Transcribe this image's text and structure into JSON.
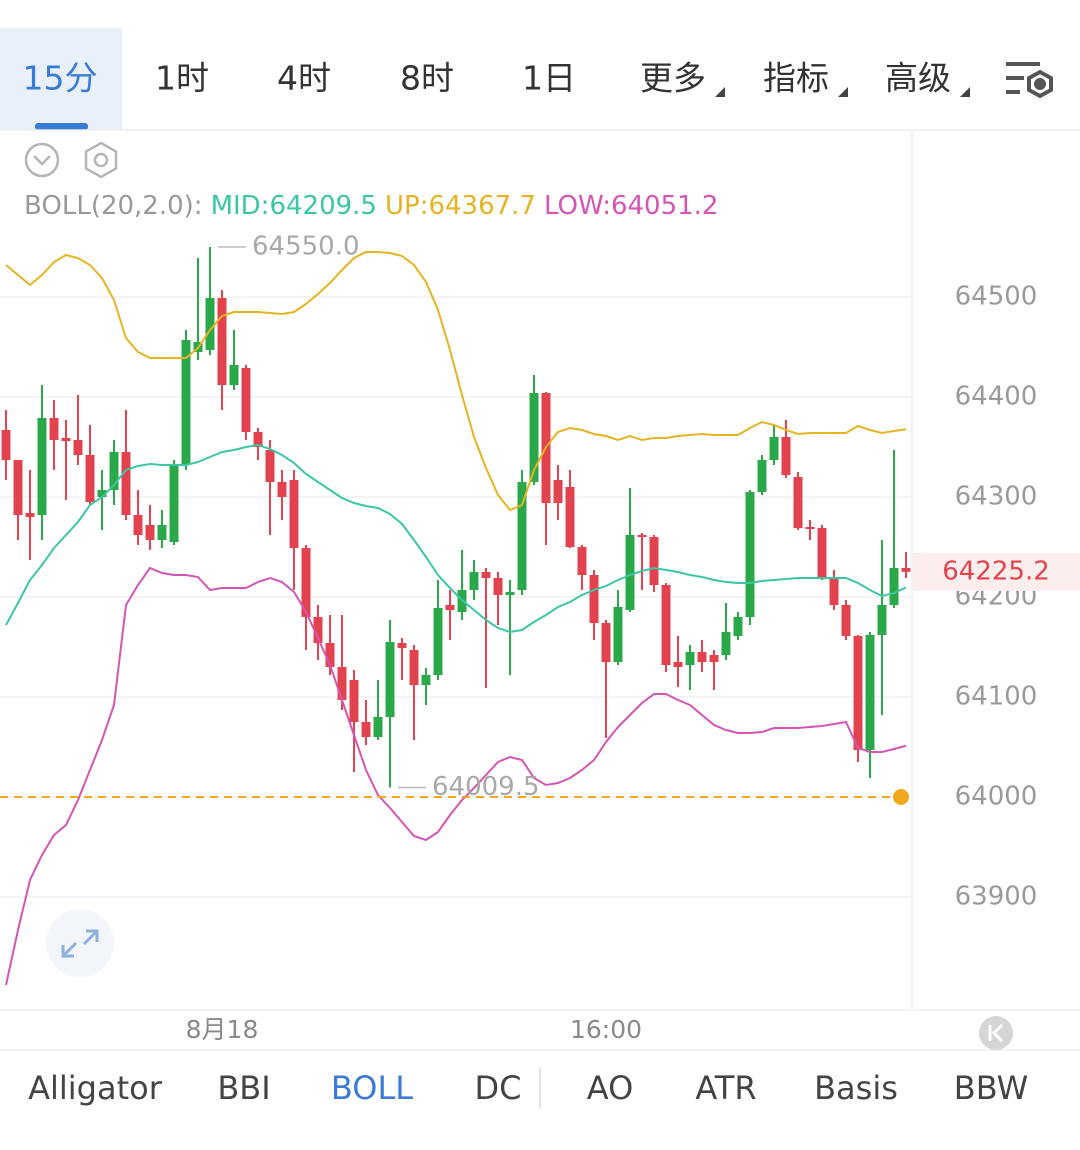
{
  "timeframe_tabs": {
    "items": [
      "15分",
      "1时",
      "4时",
      "8时",
      "1日",
      "更多",
      "指标",
      "高级"
    ],
    "active": 0
  },
  "indicator_tabs": {
    "items": [
      "Alligator",
      "BBI",
      "BOLL",
      "DC",
      "AO",
      "ATR",
      "Basis",
      "BBW"
    ],
    "active": 2
  },
  "chart_data": {
    "type": "candlestick",
    "indicator": "BOLL(20,2.0):",
    "categories": [
      null,
      null,
      null,
      null,
      null,
      null,
      null,
      null,
      null,
      null,
      null,
      null,
      null,
      null,
      null,
      null,
      null,
      null,
      "8月18",
      null,
      null,
      null,
      null,
      null,
      null,
      null,
      null,
      null,
      null,
      null,
      null,
      null,
      null,
      null,
      null,
      null,
      null,
      null,
      null,
      null,
      null,
      null,
      null,
      null,
      null,
      null,
      null,
      null,
      null,
      null,
      "16:00",
      null,
      null,
      null,
      null,
      null,
      null,
      null,
      null,
      null,
      null,
      null,
      null,
      null,
      null,
      null,
      null,
      null,
      null,
      null,
      null,
      null,
      null,
      null,
      null,
      null
    ],
    "open": [
      64367,
      64337,
      64284,
      64282,
      64379,
      64359,
      64357,
      64342,
      64300,
      64307,
      64345,
      64282,
      64272,
      64257,
      64255,
      64332,
      64445,
      64447,
      64499,
      64412,
      64429,
      64365,
      64347,
      64315,
      64317,
      64249,
      64180,
      64154,
      64130,
      64117,
      64075,
      64060,
      64080,
      64154,
      64147,
      64112,
      64122,
      64192,
      64185,
      64207,
      64225,
      64219,
      64202,
      64207,
      64315,
      64404,
      64317,
      64310,
      64250,
      64222,
      64174,
      64135,
      64187,
      64262,
      64260,
      64212,
      64135,
      64132,
      64145,
      64142,
      64142,
      64161,
      64180,
      64305,
      64337,
      64360,
      64320,
      64270,
      64269,
      64219,
      64192,
      64161,
      64047,
      64162,
      64192,
      64229
    ],
    "high": [
      64387,
      64337,
      64327,
      64412,
      64397,
      64377,
      64402,
      64372,
      64327,
      64357,
      64387,
      64307,
      64292,
      64287,
      64337,
      64467,
      64539,
      64550,
      64507,
      64467,
      64432,
      64369,
      64357,
      64327,
      64327,
      64252,
      64192,
      64182,
      64182,
      64127,
      64097,
      64117,
      64177,
      64159,
      64152,
      64129,
      64217,
      64207,
      64247,
      64237,
      64229,
      64225,
      64217,
      64327,
      64422,
      64405,
      64332,
      64327,
      64252,
      64227,
      64177,
      64207,
      64309,
      64264,
      64262,
      64214,
      64161,
      64152,
      64157,
      64147,
      64194,
      64185,
      64307,
      64342,
      64372,
      64377,
      64325,
      64277,
      64272,
      64227,
      64197,
      64162,
      64165,
      64257,
      64347,
      64245
    ],
    "low": [
      64317,
      64257,
      64237,
      64257,
      64327,
      64297,
      64332,
      64292,
      64267,
      64292,
      64277,
      64252,
      64247,
      64249,
      64252,
      64327,
      64437,
      64442,
      64387,
      64407,
      64357,
      64337,
      64262,
      64277,
      64207,
      64147,
      64137,
      64122,
      64087,
      64025,
      64052,
      64057,
      64009.5,
      64117,
      64057,
      64092,
      64117,
      64157,
      64177,
      64197,
      64109,
      64172,
      64122,
      64202,
      64312,
      64252,
      64277,
      64249,
      64207,
      64157,
      64059,
      64132,
      64185,
      64207,
      64205,
      64125,
      64110,
      64107,
      64125,
      64107,
      64137,
      64157,
      64172,
      64302,
      64332,
      64319,
      64267,
      64257,
      64217,
      64187,
      64157,
      64035,
      64019,
      64082,
      64189,
      64219
    ],
    "close": [
      64337,
      64282,
      64280,
      64379,
      64357,
      64356,
      64342,
      64295,
      64307,
      64345,
      64282,
      64262,
      64257,
      64272,
      64332,
      64457,
      64455,
      64499,
      64412,
      64432,
      64365,
      64350,
      64315,
      64300,
      64249,
      64180,
      64154,
      64130,
      64097,
      64075,
      64060,
      64080,
      64155,
      64149,
      64112,
      64122,
      64189,
      64187,
      64207,
      64225,
      64219,
      64202,
      64205,
      64315,
      64404,
      64294,
      64294,
      64250,
      64222,
      64174,
      64135,
      64190,
      64262,
      64260,
      64212,
      64132,
      64130,
      64145,
      64135,
      64135,
      64165,
      64180,
      64305,
      64337,
      64360,
      64322,
      64269,
      64269,
      64219,
      64192,
      64161,
      64047,
      64162,
      64192,
      64229,
      64225.2
    ],
    "up_color": "#2ba84a",
    "down_color": "#e2434f",
    "bands": [
      {
        "label": "MID:",
        "value": 64209.5,
        "color": "#3cc6a6",
        "values": [
          64172,
          64194,
          64217,
          64232,
          64249,
          64262,
          64275,
          64292,
          64300,
          64312,
          64327,
          64331,
          64333,
          64332,
          64332,
          64332,
          64335,
          64340,
          64345,
          64347,
          64350,
          64352,
          64348,
          64342,
          64334,
          64323,
          64315,
          64307,
          64299,
          64294,
          64291,
          64289,
          64283,
          64273,
          64257,
          64240,
          64222,
          64209,
          64197,
          64187,
          64177,
          64169,
          64165,
          64167,
          64175,
          64182,
          64190,
          64195,
          64202,
          64207,
          64211,
          64217,
          64222,
          64226,
          64229,
          64227,
          64225,
          64222,
          64220,
          64217,
          64215,
          64214,
          64214,
          64216,
          64217,
          64218,
          64219,
          64219,
          64219,
          64219,
          64219,
          64214,
          64207,
          64201,
          64204,
          64209.5
        ]
      },
      {
        "label": "UP:",
        "value": 64367.7,
        "color": "#e6b422",
        "values": [
          64532,
          64522,
          64512,
          64522,
          64535,
          64542,
          64539,
          64532,
          64519,
          64497,
          64459,
          64445,
          64439,
          64439,
          64439,
          64439,
          64449,
          64467,
          64481,
          64485,
          64485,
          64485,
          64484,
          64483,
          64485,
          64493,
          64503,
          64514,
          64527,
          64539,
          64545,
          64545,
          64544,
          64541,
          64532,
          64515,
          64487,
          64447,
          64402,
          64360,
          64329,
          64302,
          64287,
          64292,
          64327,
          64350,
          64365,
          64369,
          64367,
          64363,
          64361,
          64357,
          64361,
          64357,
          64359,
          64359,
          64361,
          64362,
          64363,
          64362,
          64362,
          64362,
          64369,
          64375,
          64372,
          64367,
          64363,
          64364,
          64364,
          64364,
          64364,
          64371,
          64367,
          64364,
          64366,
          64367.7
        ]
      },
      {
        "label": "LOW:",
        "value": 64051.2,
        "color": "#d555b4",
        "values": [
          63812,
          63867,
          63917,
          63942,
          63962,
          63972,
          63997,
          64027,
          64057,
          64092,
          64192,
          64212,
          64229,
          64224,
          64222,
          64222,
          64220,
          64207,
          64209,
          64209,
          64209,
          64215,
          64219,
          64215,
          64205,
          64185,
          64159,
          64132,
          64097,
          64062,
          64027,
          64002,
          63989,
          63975,
          63961,
          63957,
          63965,
          63982,
          63997,
          64009,
          64022,
          64035,
          64040,
          64037,
          64019,
          64012,
          64014,
          64019,
          64027,
          64037,
          64055,
          64070,
          64082,
          64094,
          64103,
          64103,
          64097,
          64092,
          64082,
          64072,
          64067,
          64064,
          64064,
          64065,
          64069,
          64069,
          64069,
          64070,
          64071,
          64073,
          64075,
          64049,
          64045,
          64045,
          64048,
          64051.2
        ]
      }
    ],
    "ylim": [
      63787,
      64667
    ],
    "yticks": [
      63900,
      64000,
      64100,
      64200,
      64300,
      64400,
      64500
    ],
    "grid": true,
    "high_label": {
      "value": 64550,
      "label": "64550.0"
    },
    "low_label": 64009.5,
    "last_price": 64225.2,
    "price_line": 64000,
    "price_line_color": "#f0a91c"
  }
}
